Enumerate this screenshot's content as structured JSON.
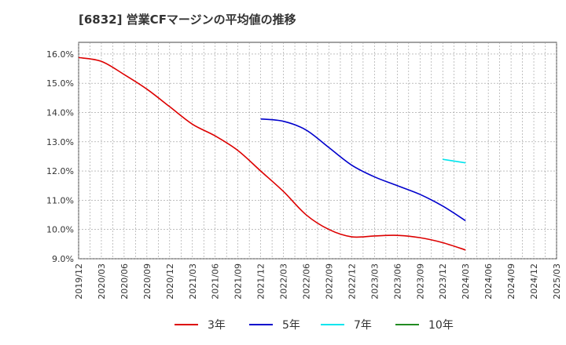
{
  "chart_data": {
    "type": "line",
    "title": "[6832]  営業CFマージンの平均値の推移",
    "xlabel": "",
    "ylabel": "",
    "x_ticks": [
      "2019/12",
      "2020/03",
      "2020/06",
      "2020/09",
      "2020/12",
      "2021/03",
      "2021/06",
      "2021/09",
      "2021/12",
      "2022/03",
      "2022/06",
      "2022/09",
      "2022/12",
      "2023/03",
      "2023/06",
      "2023/09",
      "2023/12",
      "2024/03",
      "2024/06",
      "2024/09",
      "2024/12",
      "2025/03"
    ],
    "y_ticks": [
      "9.0%",
      "10.0%",
      "11.0%",
      "12.0%",
      "13.0%",
      "14.0%",
      "15.0%",
      "16.0%"
    ],
    "ylim": [
      9.0,
      16.4
    ],
    "grid": true,
    "legend_position": "bottom",
    "series": [
      {
        "name": "3年",
        "color": "#dd0000",
        "x": [
          "2019/12",
          "2020/03",
          "2020/06",
          "2020/09",
          "2020/12",
          "2021/03",
          "2021/06",
          "2021/09",
          "2021/12",
          "2022/03",
          "2022/06",
          "2022/09",
          "2022/12",
          "2023/03",
          "2023/06",
          "2023/09",
          "2023/12",
          "2024/03"
        ],
        "values": [
          15.88,
          15.75,
          15.3,
          14.8,
          14.2,
          13.6,
          13.2,
          12.7,
          12.0,
          11.3,
          10.5,
          10.0,
          9.75,
          9.78,
          9.8,
          9.72,
          9.55,
          9.3
        ]
      },
      {
        "name": "5年",
        "color": "#0000cc",
        "x": [
          "2021/12",
          "2022/03",
          "2022/06",
          "2022/09",
          "2022/12",
          "2023/03",
          "2023/06",
          "2023/09",
          "2023/12",
          "2024/03"
        ],
        "values": [
          13.78,
          13.7,
          13.4,
          12.8,
          12.2,
          11.8,
          11.5,
          11.2,
          10.8,
          10.3
        ]
      },
      {
        "name": "7年",
        "color": "#00e5ee",
        "x": [
          "2023/12",
          "2024/03"
        ],
        "values": [
          12.4,
          12.28
        ]
      },
      {
        "name": "10年",
        "color": "#228b22",
        "x": [],
        "values": []
      }
    ]
  }
}
